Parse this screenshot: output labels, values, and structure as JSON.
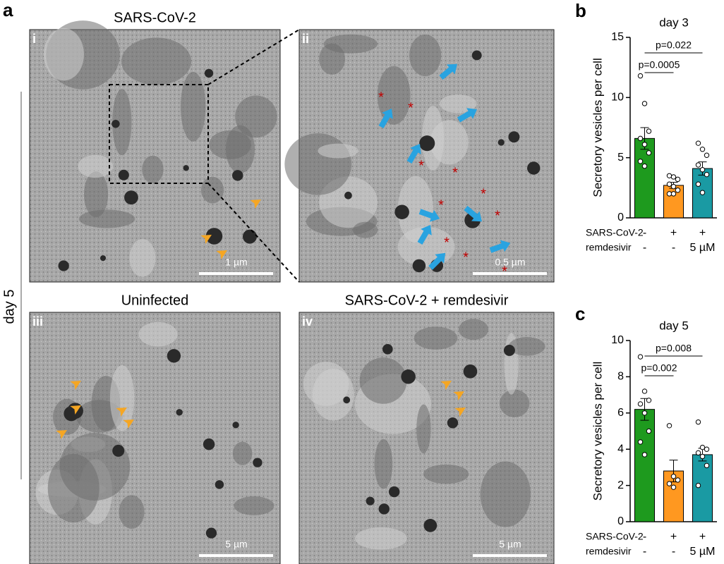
{
  "figure": {
    "letter_a": "a",
    "side_label": "day 5",
    "panels": [
      {
        "title": "SARS-CoV-2",
        "label": "i",
        "scale": "1 µm"
      },
      {
        "label": "ii",
        "scale": "0.5 µm",
        "asterisk": "*"
      },
      {
        "title": "Uninfected",
        "label": "iii",
        "scale": "5 µm"
      },
      {
        "title": "SARS-CoV-2 + remdesivir",
        "label": "iv",
        "scale": "5 µm"
      }
    ]
  },
  "chart_data": [
    {
      "type": "bar",
      "letter": "b",
      "title": "day 3",
      "y_label": "Secretory vesicles per cell",
      "conditions": [
        {
          "label": "SARS-CoV-2",
          "values": [
            "-",
            "+",
            "+"
          ]
        },
        {
          "label": "remdesivir",
          "values": [
            "-",
            "-",
            "5 µM"
          ]
        }
      ],
      "values": [
        6.6,
        2.7,
        4.1
      ],
      "errors": [
        0.9,
        0.25,
        0.55
      ],
      "points": [
        [
          11.8,
          9.5,
          7.2,
          6.6,
          6.1,
          5.4,
          4.7,
          4.3
        ],
        [
          3.5,
          3.4,
          3.2,
          2.8,
          2.6,
          2.3,
          2.0,
          2.0
        ],
        [
          6.2,
          5.7,
          5.2,
          4.4,
          4.0,
          3.6,
          2.8,
          2.1
        ]
      ],
      "colors": [
        "#1e9a1e",
        "#ff9820",
        "#1a9aa3"
      ],
      "annotations": [
        "p=0.0005",
        "p=0.022"
      ],
      "ylim": [
        0,
        15
      ],
      "yticks": [
        0,
        5,
        10,
        15
      ]
    },
    {
      "type": "bar",
      "letter": "c",
      "title": "day 5",
      "y_label": "Secretory vesicles per cell",
      "conditions": [
        {
          "label": "SARS-CoV-2",
          "values": [
            "-",
            "+",
            "+"
          ]
        },
        {
          "label": "remdesivir",
          "values": [
            "-",
            "-",
            "5 µM"
          ]
        }
      ],
      "values": [
        6.2,
        2.8,
        3.7
      ],
      "errors": [
        0.6,
        0.6,
        0.35
      ],
      "points": [
        [
          9.1,
          7.2,
          6.7,
          6.5,
          6.0,
          5.0,
          4.4,
          3.7
        ],
        [
          5.3,
          2.5,
          2.3,
          2.1,
          1.9
        ],
        [
          5.5,
          4.1,
          4.0,
          3.8,
          3.6,
          3.1,
          2.0
        ]
      ],
      "colors": [
        "#1e9a1e",
        "#ff9820",
        "#1a9aa3"
      ],
      "annotations": [
        "p=0.002",
        "p=0.008"
      ],
      "ylim": [
        0,
        10
      ],
      "yticks": [
        0,
        2,
        4,
        6,
        8,
        10
      ]
    }
  ]
}
